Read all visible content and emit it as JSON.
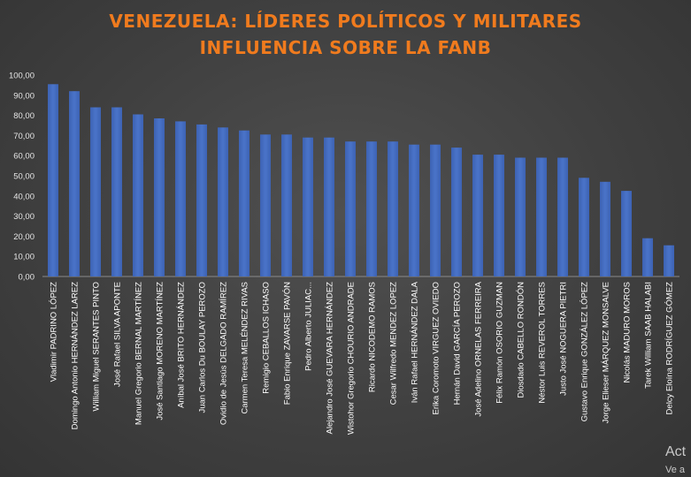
{
  "chart_data": {
    "type": "bar",
    "title_line1": "VENEZUELA: LÍDERES POLÍTICOS Y MILITARES",
    "title_line2": "INFLUENCIA SOBRE LA FANB",
    "ylim": [
      0,
      100
    ],
    "yticks": [
      "0,00",
      "10,00",
      "20,00",
      "30,00",
      "40,00",
      "50,00",
      "60,00",
      "70,00",
      "80,00",
      "90,00",
      "100,00"
    ],
    "grid": false,
    "bar_color": "#4a74c9",
    "categories": [
      "Vladimir PADRINO LÓPEZ",
      "Domingo Antonio HERNÁNDEZ LAREZ",
      "William Miguel SERANTES PINTO",
      "José Rafael SILVA APONTE",
      "Manuel Gregorio BERNAL MARTÍNEZ",
      "José Santiago MORENO MARTÍNEZ",
      "Aníbal José BRITO HERNÁNDEZ",
      "Juan Carlos Du BOULAY PEROZO",
      "Ovidio de Jesús DELGADO RAMÍREZ",
      "Carmen Teresa MELÉNDEZ RIVAS",
      "Remigio CEBALLOS ICHASO",
      "Fabio Enrique ZAVARSE PAVÓN",
      "Pedro Alberto JULIAC...",
      "Alejandro José GUEVARA HERNÁNDEZ",
      "Wistohor Gregorio CHOURIO ANDRADE",
      "Ricardo NICODEMO RAMOS",
      "Cesar Wilfredo MENDEZ LOPEZ",
      "Iván Rafael HERNÁNDEZ DALA",
      "Erika Coromoto VIRGUEZ OVIEDO",
      "Hernán David GARCÍA PEROZO",
      "José Adelino ORNELAS FERREIRA",
      "Félix Ramón OSORIO GUZMAN",
      "Diosdado CABELLO RONDÓN",
      "Néstor Luis REVEROL TORRES",
      "Justo José NOGUERA PIETRI",
      "Gustavo Enrique GONZÁLEZ LÓPEZ",
      "Jorge Elieser MÁRQUEZ MONSALVE",
      "Nicolás MADURO MOROS",
      "Tarek William SAAB HALABI",
      "Delcy Eloína RODRÍGUEZ GÓMEZ"
    ],
    "values": [
      95.5,
      92,
      84,
      84,
      80.5,
      78.5,
      77,
      75.5,
      74,
      72.5,
      70.5,
      70.5,
      69,
      69,
      67,
      67,
      67,
      65.5,
      65.5,
      64,
      60.5,
      60.5,
      59,
      59,
      59,
      49,
      47,
      42.5,
      19,
      15.5
    ]
  },
  "watermark": {
    "line1": "Act",
    "line2": "Ve a"
  }
}
